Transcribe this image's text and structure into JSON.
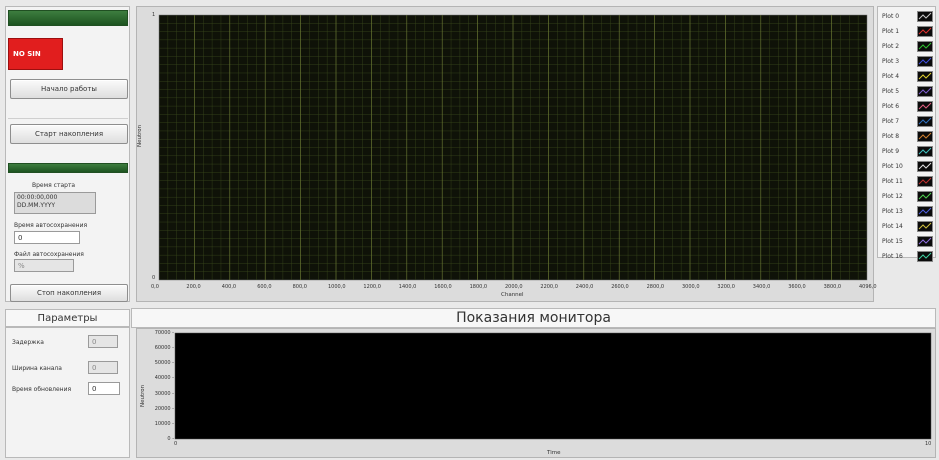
{
  "control_panel": {
    "status_led": "NO SIN",
    "start_work_button": "Начало работы",
    "start_accum_button": "Старт накопления",
    "start_time_label": "Время старта",
    "start_time_value": "00:00:00,000",
    "start_date_value": "DD.MM.YYYY",
    "autosave_time_label": "Время автосохранения",
    "autosave_time_value": "0",
    "autosave_file_label": "Файл автосохранения",
    "autosave_file_value": "%",
    "stop_accum_button": "Стоп накопления"
  },
  "params": {
    "title": "Параметры",
    "delay_label": "Задержка",
    "delay_value": "0",
    "channel_width_label": "Ширина канала",
    "channel_width_value": "0",
    "update_time_label": "Время обновления",
    "update_time_value": "0"
  },
  "spectrum_graph": {
    "ylabel": "Neutron",
    "xlabel": "Channel",
    "y_ticks": [
      "1",
      "0"
    ],
    "x_ticks": [
      "0,0",
      "200,0",
      "400,0",
      "600,0",
      "800,0",
      "1000,0",
      "1200,0",
      "1400,0",
      "1600,0",
      "1800,0",
      "2000,0",
      "2200,0",
      "2400,0",
      "2600,0",
      "2800,0",
      "3000,0",
      "3200,0",
      "3400,0",
      "3600,0",
      "3800,0",
      "4096,0"
    ]
  },
  "legend": {
    "plots": [
      {
        "name": "Plot 0",
        "color": "#c8c8c8"
      },
      {
        "name": "Plot 1",
        "color": "#e03030"
      },
      {
        "name": "Plot 2",
        "color": "#30c030"
      },
      {
        "name": "Plot 3",
        "color": "#4050e0"
      },
      {
        "name": "Plot 4",
        "color": "#e0d030"
      },
      {
        "name": "Plot 5",
        "color": "#8060d0"
      },
      {
        "name": "Plot 6",
        "color": "#e06080"
      },
      {
        "name": "Plot 7",
        "color": "#3070c0"
      },
      {
        "name": "Plot 8",
        "color": "#d08030"
      },
      {
        "name": "Plot 9",
        "color": "#40c0c0"
      },
      {
        "name": "Plot 10",
        "color": "#e0e0e0"
      },
      {
        "name": "Plot 11",
        "color": "#c03030"
      },
      {
        "name": "Plot 12",
        "color": "#50d050"
      },
      {
        "name": "Plot 13",
        "color": "#5060e0"
      },
      {
        "name": "Plot 14",
        "color": "#d0c040"
      },
      {
        "name": "Plot 15",
        "color": "#9070e0"
      },
      {
        "name": "Plot 16",
        "color": "#40d0a0"
      }
    ]
  },
  "monitor": {
    "title": "Показания монитора",
    "ylabel": "Neutron",
    "xlabel": "Time",
    "y_ticks": [
      "70000",
      "60000",
      "50000",
      "40000",
      "30000",
      "20000",
      "10000",
      "0"
    ],
    "x_ticks": [
      "0",
      "10"
    ]
  },
  "chart_data": [
    {
      "type": "line",
      "title": "",
      "xlabel": "Channel",
      "ylabel": "Neutron",
      "xlim": [
        0,
        4096
      ],
      "ylim": [
        0,
        1
      ],
      "grid": true,
      "legend_placement": "right",
      "series": []
    },
    {
      "type": "line",
      "title": "Показания монитора",
      "xlabel": "Time",
      "ylabel": "Neutron",
      "xlim": [
        0,
        10
      ],
      "ylim": [
        0,
        70000
      ],
      "grid": false,
      "series": []
    }
  ]
}
